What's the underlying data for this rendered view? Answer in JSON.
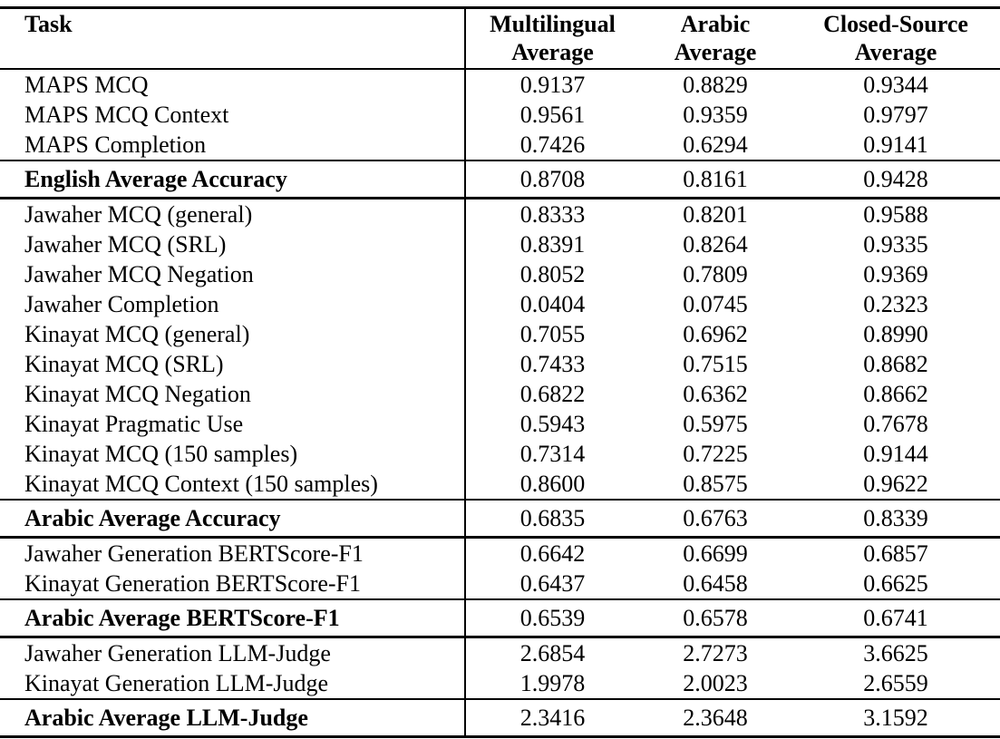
{
  "colors": {
    "ink": "#000000",
    "background": "#ffffff"
  },
  "table": {
    "header": {
      "task": "Task",
      "cols": [
        {
          "line1": "Multilingual",
          "line2": "Average"
        },
        {
          "line1": "Arabic",
          "line2": "Average"
        },
        {
          "line1": "Closed-Source",
          "line2": "Average"
        }
      ]
    },
    "rows": [
      {
        "task": "MAPS MCQ",
        "values": [
          "0.9137",
          "0.8829",
          "0.9344"
        ],
        "style": "normal"
      },
      {
        "task": "MAPS MCQ Context",
        "values": [
          "0.9561",
          "0.9359",
          "0.9797"
        ],
        "style": "normal"
      },
      {
        "task": "MAPS Completion",
        "values": [
          "0.7426",
          "0.6294",
          "0.9141"
        ],
        "style": "normal"
      },
      {
        "task": "English Average Accuracy",
        "values": [
          "0.8708",
          "0.8161",
          "0.9428"
        ],
        "style": "summary"
      },
      {
        "task": "Jawaher MCQ (general)",
        "values": [
          "0.8333",
          "0.8201",
          "0.9588"
        ],
        "style": "normal"
      },
      {
        "task": "Jawaher MCQ (SRL)",
        "values": [
          "0.8391",
          "0.8264",
          "0.9335"
        ],
        "style": "normal"
      },
      {
        "task": "Jawaher MCQ Negation",
        "values": [
          "0.8052",
          "0.7809",
          "0.9369"
        ],
        "style": "normal"
      },
      {
        "task": "Jawaher Completion",
        "values": [
          "0.0404",
          "0.0745",
          "0.2323"
        ],
        "style": "normal"
      },
      {
        "task": "Kinayat MCQ (general)",
        "values": [
          "0.7055",
          "0.6962",
          "0.8990"
        ],
        "style": "normal"
      },
      {
        "task": "Kinayat MCQ (SRL)",
        "values": [
          "0.7433",
          "0.7515",
          "0.8682"
        ],
        "style": "normal"
      },
      {
        "task": "Kinayat MCQ Negation",
        "values": [
          "0.6822",
          "0.6362",
          "0.8662"
        ],
        "style": "normal"
      },
      {
        "task": "Kinayat Pragmatic Use",
        "values": [
          "0.5943",
          "0.5975",
          "0.7678"
        ],
        "style": "normal"
      },
      {
        "task": "Kinayat MCQ (150 samples)",
        "values": [
          "0.7314",
          "0.7225",
          "0.9144"
        ],
        "style": "normal"
      },
      {
        "task": "Kinayat MCQ Context (150 samples)",
        "values": [
          "0.8600",
          "0.8575",
          "0.9622"
        ],
        "style": "normal"
      },
      {
        "task": "Arabic Average Accuracy",
        "values": [
          "0.6835",
          "0.6763",
          "0.8339"
        ],
        "style": "summary"
      },
      {
        "task": "Jawaher Generation BERTScore-F1",
        "values": [
          "0.6642",
          "0.6699",
          "0.6857"
        ],
        "style": "normal"
      },
      {
        "task": "Kinayat Generation BERTScore-F1",
        "values": [
          "0.6437",
          "0.6458",
          "0.6625"
        ],
        "style": "normal"
      },
      {
        "task": "Arabic Average BERTScore-F1",
        "values": [
          "0.6539",
          "0.6578",
          "0.6741"
        ],
        "style": "summary"
      },
      {
        "task": "Jawaher Generation LLM-Judge",
        "values": [
          "2.6854",
          "2.7273",
          "3.6625"
        ],
        "style": "normal"
      },
      {
        "task": "Kinayat Generation LLM-Judge",
        "values": [
          "1.9978",
          "2.0023",
          "2.6559"
        ],
        "style": "normal"
      },
      {
        "task": "Arabic Average LLM-Judge",
        "values": [
          "2.3416",
          "2.3648",
          "3.1592"
        ],
        "style": "summary"
      }
    ]
  }
}
